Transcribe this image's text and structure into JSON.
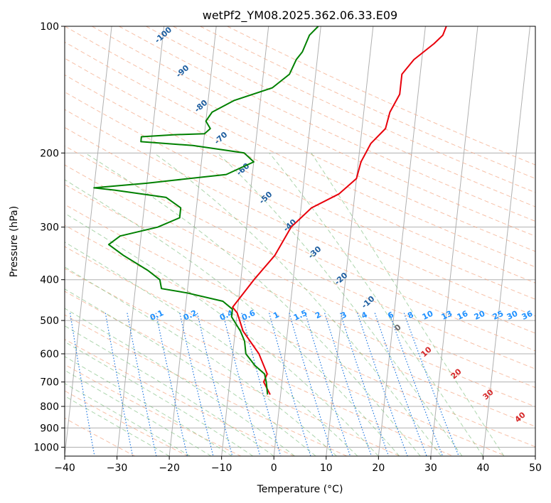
{
  "chart_data": {
    "type": "line",
    "title": "wetPf2_YM08.2025.362.06.33.E09",
    "xlabel": "Temperature (°C)",
    "ylabel": "Pressure (hPa)",
    "xlim": [
      -40,
      50
    ],
    "ylim": [
      1050,
      100
    ],
    "y_scale": "log",
    "x_ticks": [
      -40,
      -30,
      -20,
      -10,
      0,
      10,
      20,
      30,
      40,
      50
    ],
    "y_ticks": [
      100,
      200,
      300,
      400,
      500,
      600,
      700,
      800,
      900,
      1000
    ],
    "grid": true,
    "series": [
      {
        "color": "#e8000b",
        "points": [
          [
            -2,
            750
          ],
          [
            -3.5,
            700
          ],
          [
            -3,
            670
          ],
          [
            -5,
            600
          ],
          [
            -8.5,
            530
          ],
          [
            -10,
            480
          ],
          [
            -11,
            465
          ],
          [
            -7.5,
            400
          ],
          [
            -4,
            350
          ],
          [
            -1.5,
            300
          ],
          [
            2,
            270
          ],
          [
            7,
            250
          ],
          [
            10,
            230
          ],
          [
            10.5,
            210
          ],
          [
            12,
            190
          ],
          [
            14.5,
            175
          ],
          [
            15,
            160
          ],
          [
            16.5,
            145
          ],
          [
            16.5,
            130
          ],
          [
            18.5,
            120
          ],
          [
            22,
            110
          ],
          [
            23.5,
            105
          ],
          [
            24,
            100
          ]
        ]
      },
      {
        "color": "#008000",
        "points": [
          [
            -2.5,
            750
          ],
          [
            -3,
            700
          ],
          [
            -3.5,
            670
          ],
          [
            -5.5,
            640
          ],
          [
            -7.5,
            600
          ],
          [
            -8,
            560
          ],
          [
            -9,
            530
          ],
          [
            -11,
            490
          ],
          [
            -11,
            470
          ],
          [
            -13,
            450
          ],
          [
            -20,
            430
          ],
          [
            -25,
            420
          ],
          [
            -25.5,
            400
          ],
          [
            -28,
            380
          ],
          [
            -33,
            350
          ],
          [
            -36,
            330
          ],
          [
            -34,
            315
          ],
          [
            -27,
            300
          ],
          [
            -23,
            285
          ],
          [
            -23,
            270
          ],
          [
            -26,
            255
          ],
          [
            -36,
            245
          ],
          [
            -40,
            242
          ],
          [
            -30,
            236
          ],
          [
            -15,
            225
          ],
          [
            -10,
            210
          ],
          [
            -12,
            200
          ],
          [
            -22,
            192
          ],
          [
            -32,
            188
          ],
          [
            -32,
            183
          ],
          [
            -26,
            181
          ],
          [
            -20,
            180
          ],
          [
            -19,
            175
          ],
          [
            -20,
            168
          ],
          [
            -19,
            160
          ],
          [
            -15,
            150
          ],
          [
            -8,
            140
          ],
          [
            -5,
            130
          ],
          [
            -4,
            120
          ],
          [
            -3,
            115
          ],
          [
            -2,
            105
          ],
          [
            -0.5,
            100
          ]
        ]
      }
    ],
    "dry_adiabat_labels": [
      "-100",
      "-90",
      "-80",
      "-70",
      "-60",
      "-50",
      "-40",
      "-30",
      "-20",
      "-10"
    ],
    "mixing_ratio_labels": [
      "0.1",
      "0.2",
      "0.4",
      "0.6",
      "1",
      "1.5",
      "2",
      "3",
      "4",
      "6",
      "8",
      "10",
      "13",
      "16",
      "20",
      "25",
      "30",
      "36"
    ],
    "moist_adiabat_labels": [
      "0",
      "10",
      "20",
      "30",
      "40"
    ]
  },
  "colors": {
    "temperature": "#e8000b",
    "dewpoint": "#008000",
    "dry_adiabat": "#f4a582",
    "moist_adiabat": "#7fbf7f",
    "mixing_ratio": "#1f77e0",
    "isotherm": "#888888",
    "dry_label": "#1f5fa0",
    "mixing_label": "#1e90ff",
    "moist_label": "#d62728"
  }
}
